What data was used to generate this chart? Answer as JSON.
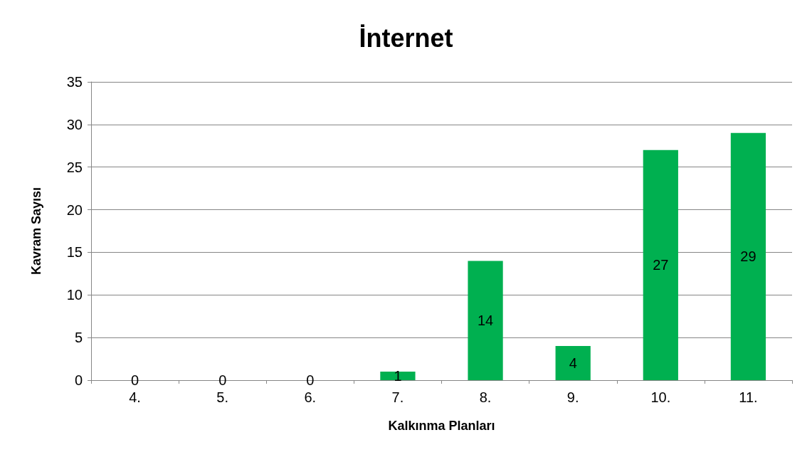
{
  "chart_data": {
    "type": "bar",
    "title": "İnternet",
    "xlabel": "Kalkınma Planları",
    "ylabel": "Kavram Sayısı",
    "categories": [
      "4.",
      "5.",
      "6.",
      "7.",
      "8.",
      "9.",
      "10.",
      "11."
    ],
    "values": [
      0,
      0,
      0,
      1,
      14,
      4,
      27,
      29
    ],
    "color": "#00b050",
    "ylim": [
      0,
      35
    ],
    "yticks": [
      0,
      5,
      10,
      15,
      20,
      25,
      30,
      35
    ],
    "grid": "y",
    "data_labels": true
  }
}
